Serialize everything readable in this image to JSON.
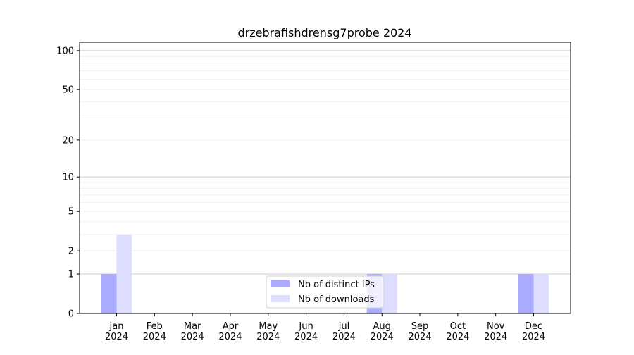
{
  "chart_data": {
    "type": "bar",
    "title": "drzebrafishdrensg7probe 2024",
    "xlabel": "",
    "ylabel": "",
    "yscale": "log(1+y)",
    "ylim": [
      0,
      116
    ],
    "yticks": [
      0,
      1,
      2,
      5,
      10,
      20,
      50,
      100
    ],
    "ytick_labels": [
      "0",
      "1",
      "2",
      "5",
      "10",
      "20",
      "50",
      "100"
    ],
    "categories": [
      "Jan\n2024",
      "Feb\n2024",
      "Mar\n2024",
      "Apr\n2024",
      "May\n2024",
      "Jun\n2024",
      "Jul\n2024",
      "Aug\n2024",
      "Sep\n2024",
      "Oct\n2024",
      "Nov\n2024",
      "Dec\n2024"
    ],
    "category_lines": [
      [
        "Jan",
        "2024"
      ],
      [
        "Feb",
        "2024"
      ],
      [
        "Mar",
        "2024"
      ],
      [
        "Apr",
        "2024"
      ],
      [
        "May",
        "2024"
      ],
      [
        "Jun",
        "2024"
      ],
      [
        "Jul",
        "2024"
      ],
      [
        "Aug",
        "2024"
      ],
      [
        "Sep",
        "2024"
      ],
      [
        "Oct",
        "2024"
      ],
      [
        "Nov",
        "2024"
      ],
      [
        "Dec",
        "2024"
      ]
    ],
    "series": [
      {
        "name": "Nb of distinct IPs",
        "color": "#aaaaff",
        "values": [
          1,
          0,
          0,
          0,
          0,
          0,
          0,
          1,
          0,
          0,
          0,
          1
        ]
      },
      {
        "name": "Nb of downloads",
        "color": "#ddddff",
        "values": [
          3,
          0,
          0,
          0,
          0,
          0,
          0,
          1,
          0,
          0,
          0,
          1
        ]
      }
    ],
    "grid": true,
    "legend": "bottom-center"
  }
}
